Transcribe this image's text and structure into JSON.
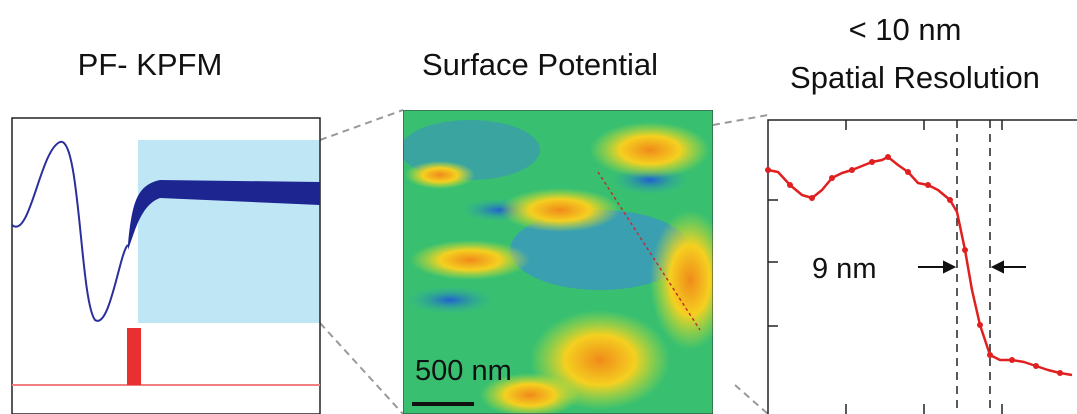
{
  "panels": [
    {
      "title": "PF- KPFM"
    },
    {
      "title": "Surface Potential",
      "scale_bar": "500 nm"
    },
    {
      "title_lines": [
        "< 10 nm",
        "Spatial Resolution"
      ],
      "annotation": "9 nm"
    }
  ]
}
